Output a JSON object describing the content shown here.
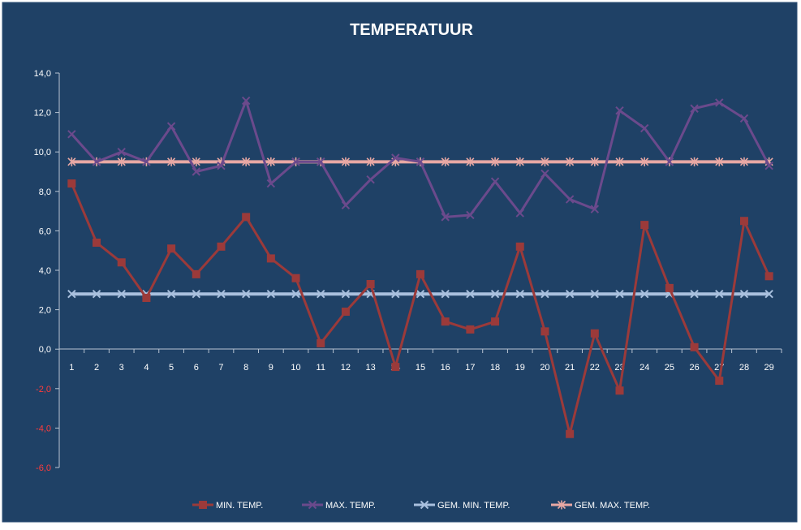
{
  "chart_data": {
    "type": "line",
    "title": "TEMPERATUUR",
    "xlabel": "",
    "ylabel": "",
    "ylim": [
      -6,
      14
    ],
    "yticks": [
      "14,0",
      "12,0",
      "10,0",
      "8,0",
      "6,0",
      "4,0",
      "2,0",
      "0,0",
      "-2,0",
      "-4,0",
      "-6,0"
    ],
    "categories": [
      "1",
      "2",
      "3",
      "4",
      "5",
      "6",
      "7",
      "8",
      "9",
      "10",
      "11",
      "12",
      "13",
      "14",
      "15",
      "16",
      "17",
      "18",
      "19",
      "20",
      "21",
      "22",
      "23",
      "24",
      "25",
      "26",
      "27",
      "28",
      "29"
    ],
    "grid": false,
    "legend_position": "bottom",
    "series": [
      {
        "name": "MIN. TEMP.",
        "color": "#9b3a3a",
        "marker": "square",
        "values": [
          8.4,
          5.4,
          4.4,
          2.6,
          5.1,
          3.8,
          5.2,
          6.7,
          4.6,
          3.6,
          0.3,
          1.9,
          3.3,
          -0.9,
          3.8,
          1.4,
          1.0,
          1.4,
          5.2,
          0.9,
          -4.3,
          0.8,
          -2.1,
          6.3,
          3.1,
          0.1,
          -1.6,
          6.5,
          3.7
        ]
      },
      {
        "name": "MAX. TEMP.",
        "color": "#6b4a8c",
        "marker": "x",
        "values": [
          10.9,
          9.5,
          10.0,
          9.5,
          11.3,
          9.0,
          9.3,
          12.6,
          8.4,
          9.5,
          9.5,
          7.3,
          8.6,
          9.7,
          9.5,
          6.7,
          6.8,
          8.5,
          6.9,
          8.9,
          7.6,
          7.1,
          12.1,
          11.2,
          9.5,
          12.2,
          12.5,
          11.7,
          9.3
        ]
      },
      {
        "name": "GEM. MIN. TEMP.",
        "color": "#a9c0de",
        "marker": "x",
        "values": [
          2.8,
          2.8,
          2.8,
          2.8,
          2.8,
          2.8,
          2.8,
          2.8,
          2.8,
          2.8,
          2.8,
          2.8,
          2.8,
          2.8,
          2.8,
          2.8,
          2.8,
          2.8,
          2.8,
          2.8,
          2.8,
          2.8,
          2.8,
          2.8,
          2.8,
          2.8,
          2.8,
          2.8,
          2.8
        ]
      },
      {
        "name": "GEM. MAX. TEMP.",
        "color": "#e8a8a4",
        "marker": "star",
        "values": [
          9.5,
          9.5,
          9.5,
          9.5,
          9.5,
          9.5,
          9.5,
          9.5,
          9.5,
          9.5,
          9.5,
          9.5,
          9.5,
          9.5,
          9.5,
          9.5,
          9.5,
          9.5,
          9.5,
          9.5,
          9.5,
          9.5,
          9.5,
          9.5,
          9.5,
          9.5,
          9.5,
          9.5,
          9.5
        ]
      }
    ],
    "colors": {
      "background": "#1f4166",
      "axis": "#b8c4d2",
      "text": "#ffffff",
      "negative_tick": "#ff3b3b"
    }
  }
}
